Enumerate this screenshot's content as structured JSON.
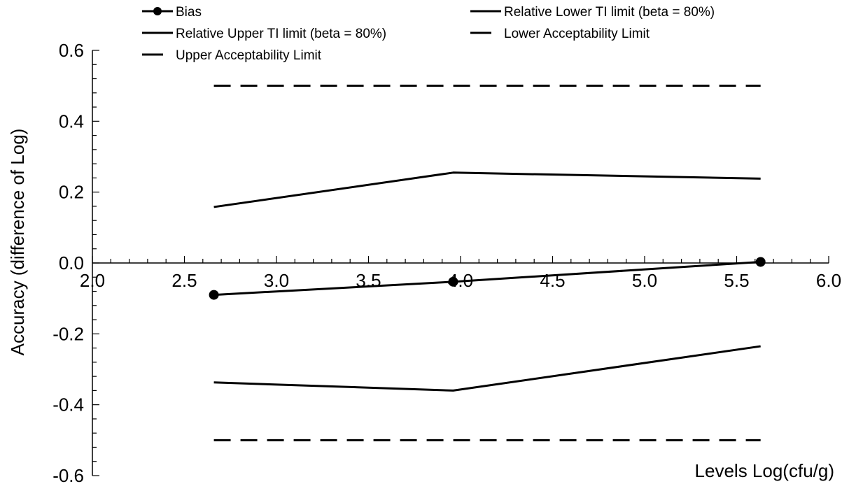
{
  "chart_data": {
    "type": "line",
    "title": "",
    "xlabel": "Levels Log(cfu/g)",
    "ylabel": "Accuracy (difference of  Log)",
    "xlim": [
      2.0,
      6.0
    ],
    "ylim": [
      -0.6,
      0.6
    ],
    "x_ticks": [
      "2.0",
      "2.5",
      "3.0",
      "3.5",
      "4.0",
      "4.5",
      "5.0",
      "5.5",
      "6.0"
    ],
    "y_ticks": [
      "-0.6",
      "-0.4",
      "-0.2",
      "0.0",
      "0.2",
      "0.4",
      "0.6"
    ],
    "x_tick_values": [
      2.0,
      2.5,
      3.0,
      3.5,
      4.0,
      4.5,
      5.0,
      5.5,
      6.0
    ],
    "y_tick_values": [
      -0.6,
      -0.4,
      -0.2,
      0.0,
      0.2,
      0.4,
      0.6
    ],
    "grid": false,
    "legend_position": "top",
    "series": [
      {
        "name": "Bias",
        "style": "solid-marker",
        "x": [
          2.66,
          3.96,
          5.63
        ],
        "y": [
          -0.09,
          -0.053,
          0.003
        ]
      },
      {
        "name": "Relative Lower TI limit (beta = 80%)",
        "style": "solid",
        "x": [
          2.66,
          3.96,
          5.63
        ],
        "y": [
          0.158,
          0.255,
          0.238
        ]
      },
      {
        "name": "Relative Upper TI limit (beta = 80%)",
        "style": "solid",
        "x": [
          2.66,
          3.96,
          5.63
        ],
        "y": [
          -0.337,
          -0.36,
          -0.235
        ]
      },
      {
        "name": "Lower Acceptability Limit",
        "style": "dashed",
        "x": [
          2.66,
          5.63
        ],
        "y": [
          0.5,
          0.5
        ]
      },
      {
        "name": "Upper Acceptability Limit",
        "style": "dashed",
        "x": [
          2.66,
          5.63
        ],
        "y": [
          -0.5,
          -0.5
        ]
      }
    ]
  }
}
